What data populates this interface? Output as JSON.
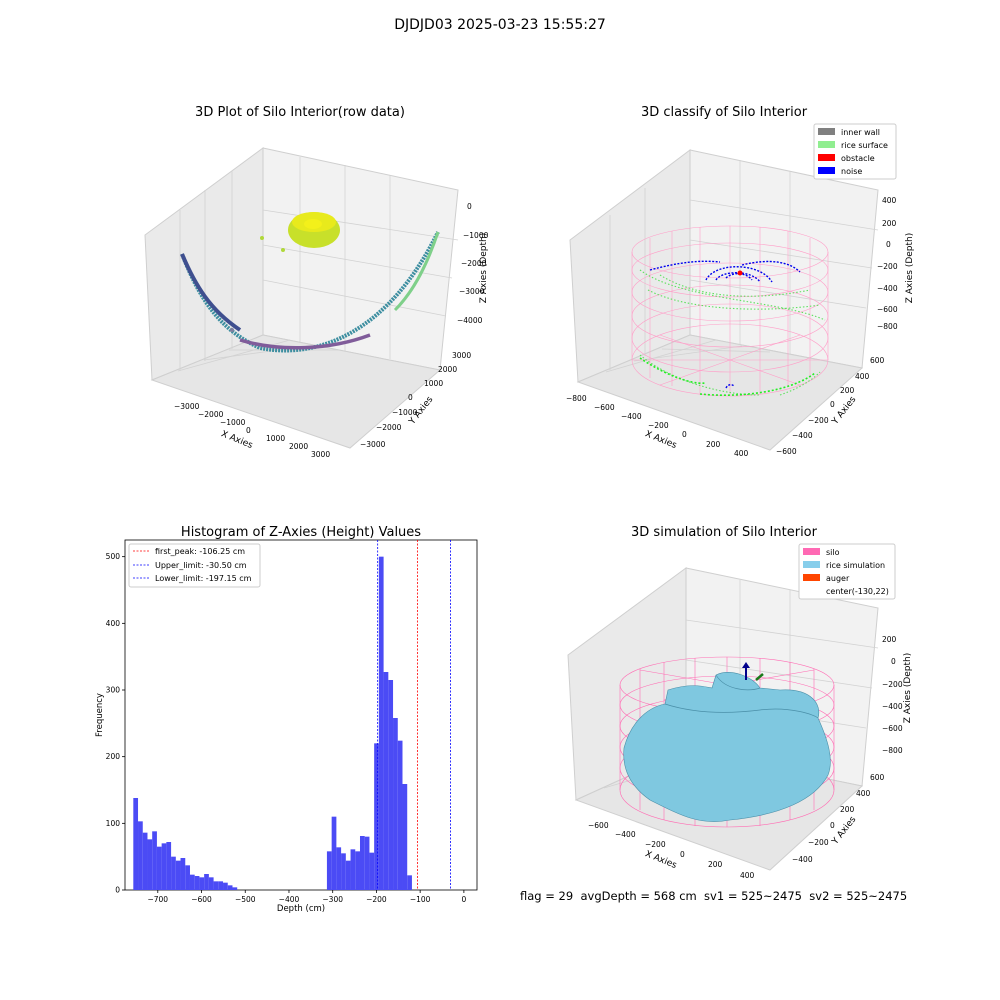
{
  "suptitle": "DJDJD03 2025-03-23 15:55:27",
  "footer": "flag = 29  avgDepth = 568 cm  sv1 = 525~2475  sv2 = 525~2475",
  "colors": {
    "inner_wall": "#808080",
    "rice_surface": "#90ee90",
    "obstacle": "#ff0000",
    "noise": "#0000ff",
    "silo": "#ff69b4",
    "rice_simulation": "#87ceeb",
    "auger": "#ff4500",
    "histogram": "#4b4bf5"
  },
  "panels": {
    "raw": {
      "title": "3D Plot of Silo Interior(row data)",
      "xlabel": "X Axies",
      "ylabel": "Y Axies",
      "zlabel": "Z Axies (Depth)",
      "xticks": [
        "−3000",
        "−2000",
        "−1000",
        "0",
        "1000",
        "2000",
        "3000"
      ],
      "yticks": [
        "3000",
        "2000",
        "1000",
        "0",
        "−1000",
        "−2000",
        "−3000"
      ],
      "zticks": [
        "0",
        "−1000",
        "−2000",
        "−3000",
        "−4000"
      ]
    },
    "classify": {
      "title": "3D classify of Silo Interior",
      "xlabel": "X Axies",
      "ylabel": "Y Axies",
      "zlabel": "Z Axies (Depth)",
      "xticks": [
        "−800",
        "−600",
        "−400",
        "−200",
        "0",
        "200",
        "400"
      ],
      "yticks": [
        "600",
        "400",
        "200",
        "0",
        "−200",
        "−400",
        "−600"
      ],
      "zticks": [
        "400",
        "200",
        "0",
        "−200",
        "−400",
        "−600",
        "−800"
      ],
      "legend": [
        "inner wall",
        "rice surface",
        "obstacle",
        "noise"
      ]
    },
    "simulation": {
      "title": "3D simulation of Silo Interior",
      "xlabel": "X Axies",
      "ylabel": "Y Axies",
      "zlabel": "Z Axies (Depth)",
      "xticks": [
        "−600",
        "−400",
        "−200",
        "0",
        "200",
        "400"
      ],
      "yticks": [
        "600",
        "400",
        "200",
        "0",
        "−200",
        "−400"
      ],
      "zticks": [
        "200",
        "0",
        "−200",
        "−400",
        "−600",
        "−800"
      ],
      "legend": [
        "silo",
        "rice simulation",
        "auger",
        "center(-130,22)"
      ]
    }
  },
  "chart_data": [
    {
      "type": "histogram",
      "title": "Histogram of Z-Axies (Height) Values",
      "xlabel": "Depth (cm)",
      "ylabel": "Frequency",
      "xlim": [
        -775,
        30
      ],
      "ylim": [
        0,
        525
      ],
      "xticks": [
        -700,
        -600,
        -500,
        -400,
        -300,
        -200,
        -100,
        0
      ],
      "xtick_labels": [
        "−700",
        "−600",
        "−500",
        "−400",
        "−300",
        "−200",
        "−100",
        "0"
      ],
      "yticks": [
        0,
        100,
        200,
        300,
        400,
        500
      ],
      "bin_width": 10.8,
      "bin_start": -756,
      "counts": [
        138,
        103,
        86,
        76,
        88,
        65,
        70,
        72,
        50,
        44,
        48,
        37,
        23,
        21,
        19,
        24,
        19,
        13,
        13,
        11,
        7,
        4,
        0,
        0,
        0,
        0,
        0,
        0,
        0,
        0,
        0,
        0,
        0,
        0,
        0,
        0,
        0,
        0,
        0,
        0,
        0,
        58,
        110,
        64,
        55,
        44,
        61,
        58,
        81,
        80,
        56,
        220,
        500,
        327,
        315,
        258,
        224,
        159,
        22
      ],
      "vlines": [
        {
          "x": -106.25,
          "label": "first_peak: -106.25 cm",
          "color": "#ff0000"
        },
        {
          "x": -30.5,
          "label": "Upper_limit: -30.50 cm",
          "color": "#0000ff"
        },
        {
          "x": -197.15,
          "label": "Lower_limit: -197.15 cm",
          "color": "#0000ff"
        }
      ]
    }
  ]
}
